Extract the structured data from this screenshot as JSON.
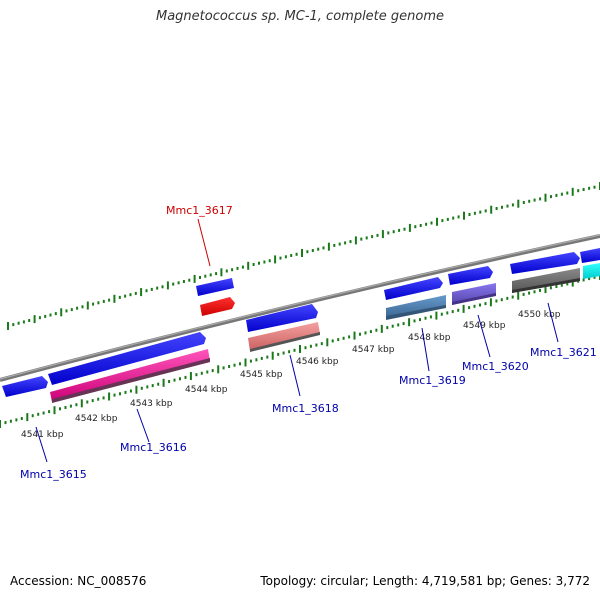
{
  "title": "Magnetococcus sp. MC-1, complete genome",
  "footer": {
    "accession": "Accession: NC_008576",
    "summary": "Topology: circular; Length: 4,719,581 bp; Genes: 3,772"
  },
  "colors": {
    "backbone": "#888888",
    "tick": "#1a7a1a",
    "label_blue": "#0000aa",
    "label_red": "#cc0000"
  },
  "kbp_labels": [
    "4541 kbp",
    "4542 kbp",
    "4543 kbp",
    "4544 kbp",
    "4545 kbp",
    "4546 kbp",
    "4547 kbp",
    "4548 kbp",
    "4549 kbp",
    "4550 kbp"
  ],
  "genes": [
    {
      "name": "Mmc1_3615",
      "color": "#0000aa"
    },
    {
      "name": "Mmc1_3616",
      "color": "#0000aa"
    },
    {
      "name": "Mmc1_3617",
      "color": "#cc0000"
    },
    {
      "name": "Mmc1_3618",
      "color": "#0000aa"
    },
    {
      "name": "Mmc1_3619",
      "color": "#0000aa"
    },
    {
      "name": "Mmc1_3620",
      "color": "#0000aa"
    },
    {
      "name": "Mmc1_3621",
      "color": "#0000aa"
    }
  ]
}
